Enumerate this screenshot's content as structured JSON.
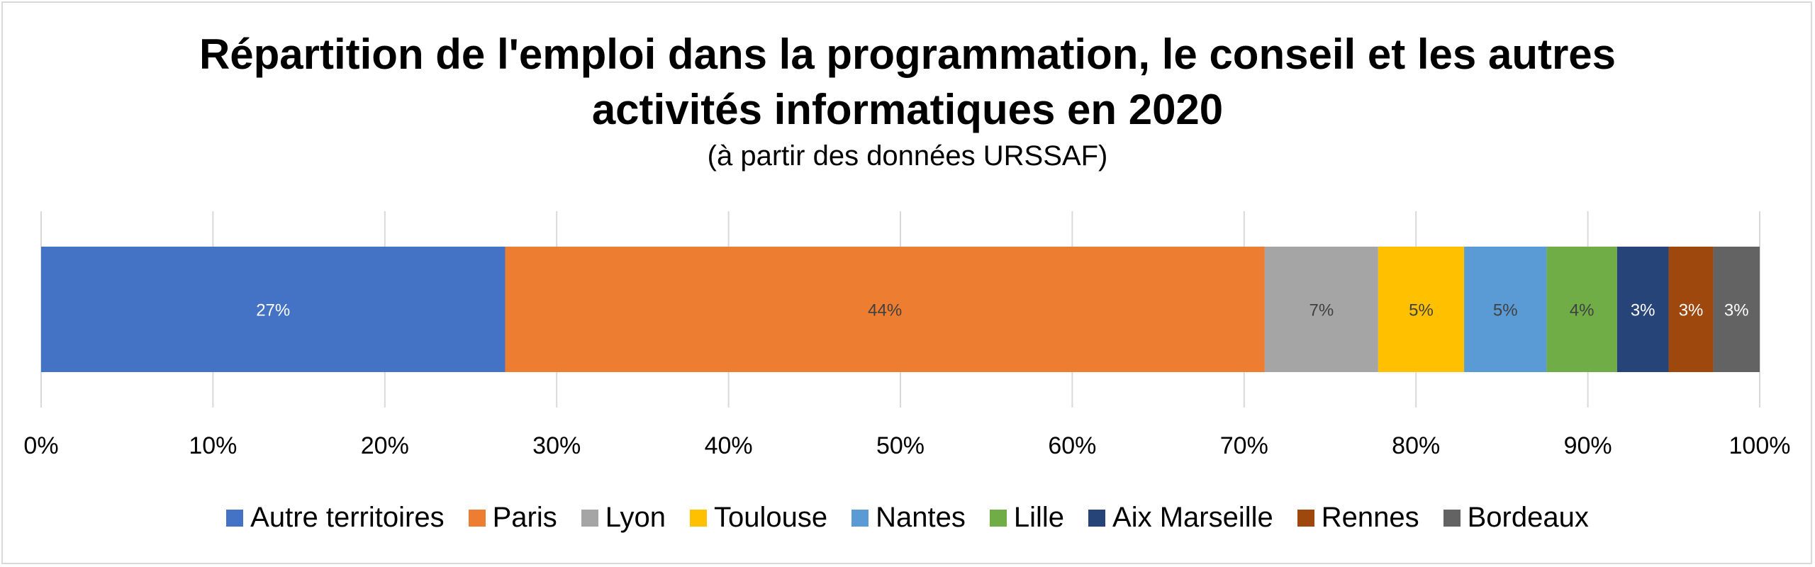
{
  "chart_data": {
    "type": "bar",
    "orientation": "horizontal",
    "stacked": "percent",
    "title": "Répartition de l'emploi dans la programmation, le conseil et les autres activités informatiques en 2020",
    "title_lines": [
      "Répartition de l'emploi dans la programmation, le conseil et les autres",
      "activités informatiques en 2020"
    ],
    "subtitle": "(à partir des données URSSAF)",
    "xlim": [
      0,
      100
    ],
    "x_ticks": [
      "0%",
      "10%",
      "20%",
      "30%",
      "40%",
      "50%",
      "60%",
      "70%",
      "80%",
      "90%",
      "100%"
    ],
    "grid": true,
    "legend_position": "bottom",
    "series": [
      {
        "name": "Autre territoires",
        "value": 27.0,
        "label": "27%",
        "color": "#4472C4",
        "label_color": "#ffffff"
      },
      {
        "name": "Paris",
        "value": 44.2,
        "label": "44%",
        "color": "#ED7D31",
        "label_color": "#404040"
      },
      {
        "name": "Lyon",
        "value": 6.6,
        "label": "7%",
        "color": "#A5A5A5",
        "label_color": "#404040"
      },
      {
        "name": "Toulouse",
        "value": 5.0,
        "label": "5%",
        "color": "#FFC000",
        "label_color": "#404040"
      },
      {
        "name": "Nantes",
        "value": 4.8,
        "label": "5%",
        "color": "#5B9BD5",
        "label_color": "#404040"
      },
      {
        "name": "Lille",
        "value": 4.1,
        "label": "4%",
        "color": "#70AD47",
        "label_color": "#404040"
      },
      {
        "name": "Aix Marseille",
        "value": 3.0,
        "label": "3%",
        "color": "#264478",
        "label_color": "#ffffff"
      },
      {
        "name": "Rennes",
        "value": 2.6,
        "label": "3%",
        "color": "#9E480E",
        "label_color": "#ffffff"
      },
      {
        "name": "Bordeaux",
        "value": 2.7,
        "label": "3%",
        "color": "#636363",
        "label_color": "#ffffff"
      }
    ]
  }
}
